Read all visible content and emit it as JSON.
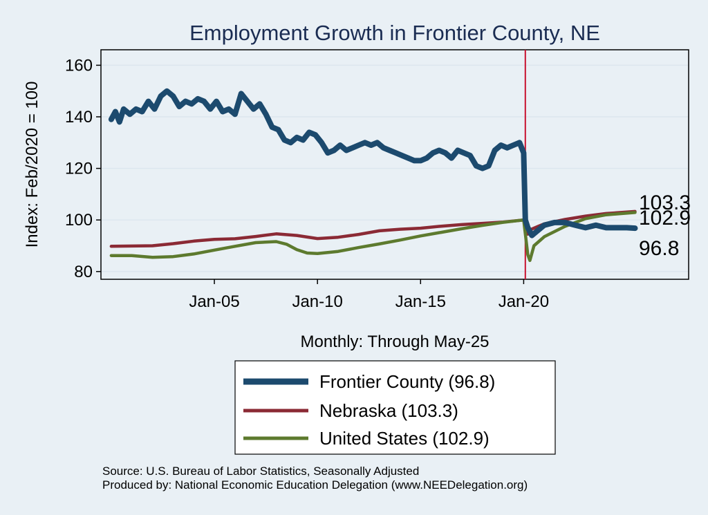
{
  "chart_data": {
    "type": "line",
    "title": "Employment Growth in Frontier  County, NE",
    "xlabel": "Monthly: Through May-25",
    "ylabel": "Index: Feb/2020 = 100",
    "ylim": [
      77,
      166
    ],
    "xlim": [
      1999.5,
      2028.0
    ],
    "yticks": [
      80,
      100,
      120,
      140,
      160
    ],
    "xticks": [
      {
        "value": 2005,
        "label": "Jan-05"
      },
      {
        "value": 2010,
        "label": "Jan-10"
      },
      {
        "value": 2015,
        "label": "Jan-15"
      },
      {
        "value": 2020,
        "label": "Jan-20"
      }
    ],
    "reference_line": {
      "x": 2020.08,
      "color": "#c8102e"
    },
    "grid": true,
    "series": [
      {
        "name": "Frontier  County",
        "legend": "Frontier  County (96.8)",
        "end_label": "96.8",
        "color": "#1c4a6e",
        "points": [
          [
            2000.0,
            139
          ],
          [
            2000.2,
            142
          ],
          [
            2000.4,
            138
          ],
          [
            2000.6,
            143
          ],
          [
            2000.9,
            141
          ],
          [
            2001.2,
            143
          ],
          [
            2001.5,
            142
          ],
          [
            2001.8,
            146
          ],
          [
            2002.1,
            143
          ],
          [
            2002.4,
            148
          ],
          [
            2002.7,
            150
          ],
          [
            2003.0,
            148
          ],
          [
            2003.3,
            144
          ],
          [
            2003.6,
            146
          ],
          [
            2003.9,
            145
          ],
          [
            2004.2,
            147
          ],
          [
            2004.5,
            146
          ],
          [
            2004.8,
            143
          ],
          [
            2005.1,
            146
          ],
          [
            2005.4,
            142
          ],
          [
            2005.7,
            143
          ],
          [
            2006.0,
            141
          ],
          [
            2006.3,
            149
          ],
          [
            2006.6,
            146
          ],
          [
            2006.9,
            143
          ],
          [
            2007.2,
            145
          ],
          [
            2007.5,
            141
          ],
          [
            2007.8,
            136
          ],
          [
            2008.1,
            135
          ],
          [
            2008.4,
            131
          ],
          [
            2008.7,
            130
          ],
          [
            2009.0,
            132
          ],
          [
            2009.3,
            131
          ],
          [
            2009.6,
            134
          ],
          [
            2009.9,
            133
          ],
          [
            2010.2,
            130
          ],
          [
            2010.5,
            126
          ],
          [
            2010.8,
            127
          ],
          [
            2011.1,
            129
          ],
          [
            2011.4,
            127
          ],
          [
            2011.7,
            128
          ],
          [
            2012.0,
            129
          ],
          [
            2012.3,
            130
          ],
          [
            2012.6,
            129
          ],
          [
            2012.9,
            130
          ],
          [
            2013.2,
            128
          ],
          [
            2013.5,
            127
          ],
          [
            2013.8,
            126
          ],
          [
            2014.1,
            125
          ],
          [
            2014.4,
            124
          ],
          [
            2014.7,
            123
          ],
          [
            2015.0,
            123
          ],
          [
            2015.3,
            124
          ],
          [
            2015.6,
            126
          ],
          [
            2015.9,
            127
          ],
          [
            2016.2,
            126
          ],
          [
            2016.5,
            124
          ],
          [
            2016.8,
            127
          ],
          [
            2017.1,
            126
          ],
          [
            2017.4,
            125
          ],
          [
            2017.7,
            121
          ],
          [
            2018.0,
            120
          ],
          [
            2018.3,
            121
          ],
          [
            2018.6,
            127
          ],
          [
            2018.9,
            129
          ],
          [
            2019.2,
            128
          ],
          [
            2019.5,
            129
          ],
          [
            2019.8,
            130
          ],
          [
            2020.0,
            126
          ],
          [
            2020.08,
            100
          ],
          [
            2020.2,
            97
          ],
          [
            2020.4,
            94
          ],
          [
            2020.7,
            96
          ],
          [
            2021.0,
            98
          ],
          [
            2021.5,
            99
          ],
          [
            2022.0,
            99
          ],
          [
            2022.5,
            98
          ],
          [
            2023.0,
            97
          ],
          [
            2023.5,
            98
          ],
          [
            2024.0,
            97
          ],
          [
            2024.5,
            97
          ],
          [
            2025.0,
            97
          ],
          [
            2025.4,
            96.8
          ]
        ]
      },
      {
        "name": "Nebraska",
        "legend": "Nebraska (103.3)",
        "end_label": "103.3",
        "color": "#8b2a35",
        "points": [
          [
            2000.0,
            89.8
          ],
          [
            2001.0,
            89.9
          ],
          [
            2002.0,
            90.0
          ],
          [
            2003.0,
            90.8
          ],
          [
            2004.0,
            91.8
          ],
          [
            2005.0,
            92.5
          ],
          [
            2006.0,
            92.7
          ],
          [
            2007.0,
            93.6
          ],
          [
            2008.0,
            94.6
          ],
          [
            2009.0,
            94.0
          ],
          [
            2010.0,
            92.8
          ],
          [
            2011.0,
            93.3
          ],
          [
            2012.0,
            94.4
          ],
          [
            2013.0,
            95.8
          ],
          [
            2014.0,
            96.4
          ],
          [
            2015.0,
            96.8
          ],
          [
            2016.0,
            97.6
          ],
          [
            2017.0,
            98.2
          ],
          [
            2018.0,
            98.7
          ],
          [
            2019.0,
            99.2
          ],
          [
            2020.0,
            100
          ],
          [
            2020.2,
            94.5
          ],
          [
            2020.4,
            96.5
          ],
          [
            2020.7,
            97.5
          ],
          [
            2021.0,
            98.5
          ],
          [
            2022.0,
            100.2
          ],
          [
            2023.0,
            101.5
          ],
          [
            2024.0,
            102.5
          ],
          [
            2025.4,
            103.3
          ]
        ]
      },
      {
        "name": "United States",
        "legend": "United States (102.9)",
        "end_label": "102.9",
        "color": "#5d7a2e",
        "points": [
          [
            2000.0,
            86.2
          ],
          [
            2001.0,
            86.2
          ],
          [
            2002.0,
            85.5
          ],
          [
            2003.0,
            85.8
          ],
          [
            2004.0,
            86.8
          ],
          [
            2005.0,
            88.3
          ],
          [
            2006.0,
            89.8
          ],
          [
            2007.0,
            91.2
          ],
          [
            2008.0,
            91.6
          ],
          [
            2008.5,
            90.6
          ],
          [
            2009.0,
            88.5
          ],
          [
            2009.5,
            87.2
          ],
          [
            2010.0,
            87.0
          ],
          [
            2011.0,
            87.8
          ],
          [
            2012.0,
            89.3
          ],
          [
            2013.0,
            90.7
          ],
          [
            2014.0,
            92.2
          ],
          [
            2015.0,
            93.8
          ],
          [
            2016.0,
            95.2
          ],
          [
            2017.0,
            96.6
          ],
          [
            2018.0,
            97.9
          ],
          [
            2019.0,
            99.1
          ],
          [
            2020.0,
            100
          ],
          [
            2020.2,
            86.5
          ],
          [
            2020.3,
            84.3
          ],
          [
            2020.5,
            90.0
          ],
          [
            2021.0,
            93.5
          ],
          [
            2022.0,
            97.5
          ],
          [
            2023.0,
            100.5
          ],
          [
            2024.0,
            102.0
          ],
          [
            2025.4,
            102.9
          ]
        ]
      }
    ]
  },
  "footer": {
    "source": "Source: U.S. Bureau of Labor Statistics, Seasonally Adjusted",
    "produced": "Produced by: National Economic Education Delegation (www.NEEDelegation.org)"
  }
}
